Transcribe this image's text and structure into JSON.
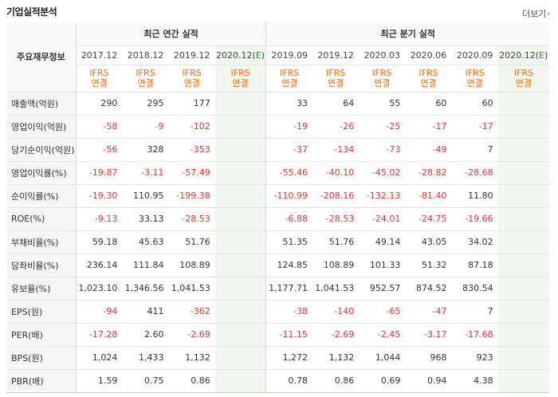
{
  "header": {
    "title": "기업실적분석",
    "more_label": "더보기"
  },
  "table": {
    "label_header": "주요재무정보",
    "annual_group": "최근 연간 실적",
    "quarter_group": "최근 분기 실적",
    "ifrs_top": "IFRS",
    "ifrs_bottom": "연결",
    "annual_periods": [
      "2017.12",
      "2018.12",
      "2019.12",
      "2020.12(E)"
    ],
    "quarter_periods": [
      "2019.09",
      "2019.12",
      "2020.03",
      "2020.06",
      "2020.09",
      "2020.12(E)"
    ],
    "rows": [
      {
        "label": "매출액(억원)",
        "values": [
          "290",
          "295",
          "177",
          "",
          "33",
          "64",
          "55",
          "60",
          "60",
          ""
        ]
      },
      {
        "label": "영업이익(억원)",
        "values": [
          "-58",
          "-9",
          "-102",
          "",
          "-19",
          "-26",
          "-25",
          "-17",
          "-17",
          ""
        ]
      },
      {
        "label": "당기순이익(억원)",
        "values": [
          "-56",
          "328",
          "-353",
          "",
          "-37",
          "-134",
          "-73",
          "-49",
          "7",
          ""
        ]
      },
      {
        "label": "영업이익률(%)",
        "values": [
          "-19.87",
          "-3.11",
          "-57.49",
          "",
          "-55.46",
          "-40.10",
          "-45.02",
          "-28.82",
          "-28.68",
          ""
        ]
      },
      {
        "label": "순이익률(%)",
        "values": [
          "-19.30",
          "110.95",
          "-199.38",
          "",
          "-110.99",
          "-208.16",
          "-132.13",
          "-81.40",
          "11.80",
          ""
        ]
      },
      {
        "label": "ROE(%)",
        "values": [
          "-9.13",
          "33.13",
          "-28.53",
          "",
          "-6.88",
          "-28.53",
          "-24.01",
          "-24.75",
          "-19.66",
          ""
        ]
      },
      {
        "label": "부채비율(%)",
        "values": [
          "59.18",
          "45.63",
          "51.76",
          "",
          "51.35",
          "51.76",
          "49.14",
          "43.05",
          "34.02",
          ""
        ]
      },
      {
        "label": "당좌비율(%)",
        "values": [
          "236.14",
          "111.84",
          "108.89",
          "",
          "124.85",
          "108.89",
          "101.33",
          "51.32",
          "87.18",
          ""
        ]
      },
      {
        "label": "유보율(%)",
        "values": [
          "1,023.10",
          "1,346.56",
          "1,041.53",
          "",
          "1,177.71",
          "1,041.53",
          "952.57",
          "874.52",
          "830.54",
          ""
        ]
      },
      {
        "label": "EPS(원)",
        "values": [
          "-94",
          "411",
          "-362",
          "",
          "-38",
          "-140",
          "-65",
          "-47",
          "7",
          ""
        ]
      },
      {
        "label": "PER(배)",
        "values": [
          "-17.28",
          "2.60",
          "-2.69",
          "",
          "-11.15",
          "-2.69",
          "-2.45",
          "-3.17",
          "-17.68",
          ""
        ]
      },
      {
        "label": "BPS(원)",
        "values": [
          "1,024",
          "1,433",
          "1,132",
          "",
          "1,272",
          "1,132",
          "1,044",
          "968",
          "923",
          ""
        ]
      },
      {
        "label": "PBR(배)",
        "values": [
          "1.59",
          "0.75",
          "0.86",
          "",
          "0.78",
          "0.86",
          "0.69",
          "0.94",
          "4.38",
          ""
        ]
      }
    ]
  },
  "colors": {
    "ifrs": "#ff6600",
    "negative": "#e03333",
    "estimate_bg": "#f2f8ef",
    "estimate_mark": "#2e8b2e"
  }
}
